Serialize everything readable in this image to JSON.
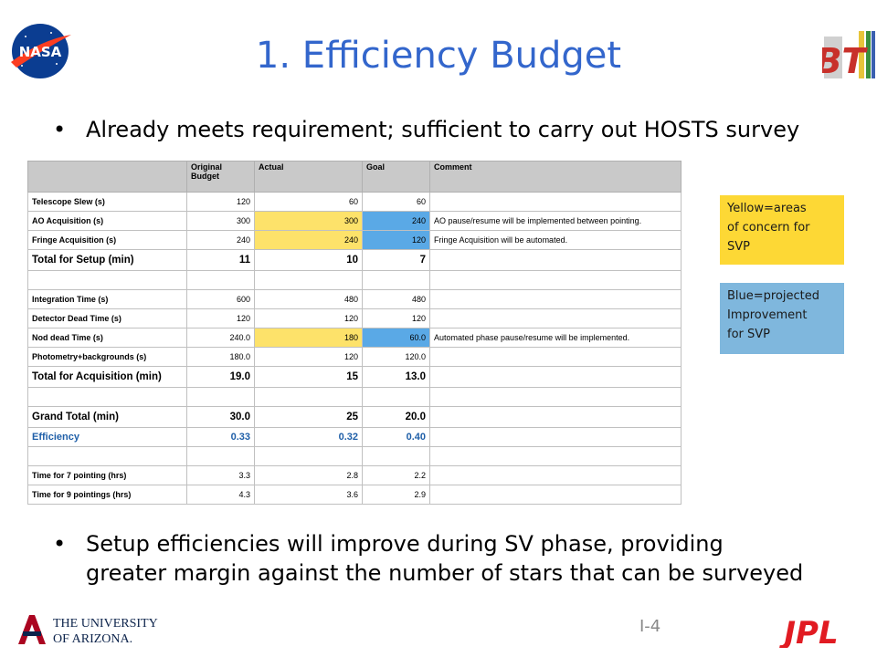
{
  "slide": {
    "title": "1. Efficiency Budget",
    "bullets": [
      {
        "text": "Already meets requirement; sufficient to carry out HOSTS survey"
      },
      {
        "line1": "Setup efficiencies will improve during SV phase, providing",
        "line2": "greater margin against the number of stars that can be surveyed"
      }
    ],
    "page_number": "I-4"
  },
  "logos": {
    "nasa": "NASA",
    "bt": "BT",
    "arizona_line1": "THE UNIVERSITY",
    "arizona_line2": "OF ARIZONA.",
    "jpl": "JPL"
  },
  "table": {
    "headers": [
      "",
      "Original Budget",
      "Actual",
      "Goal",
      "Comment"
    ],
    "rows": [
      {
        "label": "Telescope Slew (s)",
        "original": "120",
        "actual": "60",
        "goal": "60",
        "comment": ""
      },
      {
        "label": "AO Acquisition (s)",
        "original": "300",
        "actual": "300",
        "goal": "240",
        "comment": "AO pause/resume will be implemented between pointing."
      },
      {
        "label": "Fringe Acquisition (s)",
        "original": "240",
        "actual": "240",
        "goal": "120",
        "comment": "Fringe Acquisition will be automated."
      },
      {
        "label": "Total  for Setup (min)",
        "original": "11",
        "actual": "10",
        "goal": "7",
        "comment": ""
      },
      {
        "label": "",
        "original": "",
        "actual": "",
        "goal": "",
        "comment": ""
      },
      {
        "label": "Integration Time (s)",
        "original": "600",
        "actual": "480",
        "goal": "480",
        "comment": ""
      },
      {
        "label": "Detector Dead Time (s)",
        "original": "120",
        "actual": "120",
        "goal": "120",
        "comment": ""
      },
      {
        "label": "Nod dead Time (s)",
        "original": "240.0",
        "actual": "180",
        "goal": "60.0",
        "comment": "Automated phase pause/resume will be implemented."
      },
      {
        "label": "Photometry+backgrounds (s)",
        "original": "180.0",
        "actual": "120",
        "goal": "120.0",
        "comment": ""
      },
      {
        "label": "Total for Acquisition (min)",
        "original": "19.0",
        "actual": "15",
        "goal": "13.0",
        "comment": ""
      },
      {
        "label": "",
        "original": "",
        "actual": "",
        "goal": "",
        "comment": ""
      },
      {
        "label": "Grand Total (min)",
        "original": "30.0",
        "actual": "25",
        "goal": "20.0",
        "comment": ""
      },
      {
        "label": "Efficiency",
        "original": "0.33",
        "actual": "0.32",
        "goal": "0.40",
        "comment": ""
      },
      {
        "label": "",
        "original": "",
        "actual": "",
        "goal": "",
        "comment": ""
      },
      {
        "label": "Time for 7 pointing (hrs)",
        "original": "3.3",
        "actual": "2.8",
        "goal": "2.2",
        "comment": ""
      },
      {
        "label": "Time for 9 pointings (hrs)",
        "original": "4.3",
        "actual": "3.6",
        "goal": "2.9",
        "comment": ""
      }
    ]
  },
  "legend": {
    "yellow": {
      "line1": "Yellow=areas",
      "line2": "of concern for",
      "line3": "SVP",
      "color": "#fdd835"
    },
    "blue": {
      "line1": "Blue=projected",
      "line2": "Improvement",
      "line3": "for SVP",
      "color": "#7fb7dd"
    }
  },
  "colors": {
    "title": "#3366cc",
    "highlight_yellow": "#fde26a",
    "highlight_blue": "#5aa9e6",
    "efficiency_text": "#1f5fa8"
  }
}
